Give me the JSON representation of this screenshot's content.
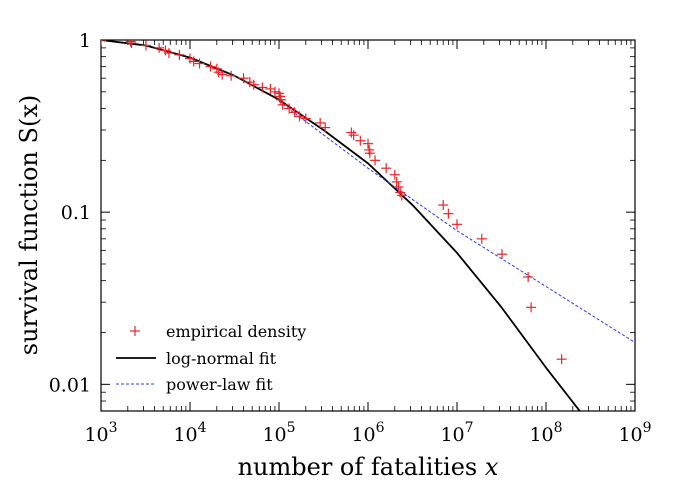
{
  "chart_data": {
    "type": "scatter",
    "xlabel": "number of fatalities",
    "xlabel_var": "x",
    "ylabel": "survival function",
    "ylabel_func": "S(x)",
    "x_scale": "log",
    "y_scale": "log",
    "xlim": [
      1000,
      1000000000
    ],
    "ylim": [
      0.007,
      1
    ],
    "x_ticks": [
      {
        "base": "10",
        "exp": "3"
      },
      {
        "base": "10",
        "exp": "4"
      },
      {
        "base": "10",
        "exp": "5"
      },
      {
        "base": "10",
        "exp": "6"
      },
      {
        "base": "10",
        "exp": "7"
      },
      {
        "base": "10",
        "exp": "8"
      },
      {
        "base": "10",
        "exp": "9"
      }
    ],
    "y_ticks": [
      {
        "value": 1,
        "label": "1"
      },
      {
        "value": 0.1,
        "label": "0.1"
      },
      {
        "value": 0.01,
        "label": "0.01"
      }
    ],
    "grid": false,
    "legend_position": "bottom-left",
    "series": [
      {
        "name": "empirical density",
        "type": "scatter",
        "marker": "plus",
        "color": "#e8262a",
        "points": [
          [
            1000,
            1.0
          ],
          [
            2150,
            0.98
          ],
          [
            2200,
            0.96
          ],
          [
            3200,
            0.93
          ],
          [
            4500,
            0.9
          ],
          [
            5300,
            0.87
          ],
          [
            5800,
            0.84
          ],
          [
            7600,
            0.82
          ],
          [
            10000,
            0.78
          ],
          [
            11000,
            0.75
          ],
          [
            12800,
            0.73
          ],
          [
            17000,
            0.7
          ],
          [
            20000,
            0.68
          ],
          [
            21000,
            0.65
          ],
          [
            23000,
            0.63
          ],
          [
            29000,
            0.62
          ],
          [
            40000,
            0.6
          ],
          [
            47000,
            0.57
          ],
          [
            52000,
            0.55
          ],
          [
            65000,
            0.53
          ],
          [
            80000,
            0.52
          ],
          [
            90000,
            0.5
          ],
          [
            100000,
            0.49
          ],
          [
            103000,
            0.47
          ],
          [
            105000,
            0.45
          ],
          [
            110000,
            0.42
          ],
          [
            130000,
            0.4
          ],
          [
            150000,
            0.38
          ],
          [
            170000,
            0.36
          ],
          [
            200000,
            0.35
          ],
          [
            290000,
            0.33
          ],
          [
            330000,
            0.31
          ],
          [
            650000,
            0.29
          ],
          [
            690000,
            0.28
          ],
          [
            820000,
            0.26
          ],
          [
            1000000,
            0.25
          ],
          [
            1030000,
            0.23
          ],
          [
            1050000,
            0.22
          ],
          [
            1200000,
            0.2
          ],
          [
            1600000,
            0.18
          ],
          [
            2000000,
            0.165
          ],
          [
            2100000,
            0.15
          ],
          [
            2200000,
            0.14
          ],
          [
            2300000,
            0.13
          ],
          [
            2400000,
            0.125
          ],
          [
            7000000,
            0.11
          ],
          [
            8000000,
            0.098
          ],
          [
            10000000,
            0.085
          ],
          [
            19000000,
            0.07
          ],
          [
            32000000,
            0.057
          ],
          [
            63000000,
            0.042
          ],
          [
            68000000,
            0.028
          ],
          [
            150000000,
            0.014
          ]
        ]
      },
      {
        "name": "log-normal fit",
        "type": "line",
        "style": "solid",
        "color": "#000000",
        "points": [
          [
            1000,
            1.0
          ],
          [
            3162,
            0.93
          ],
          [
            10000,
            0.79
          ],
          [
            31623,
            0.62
          ],
          [
            100000,
            0.45
          ],
          [
            316228,
            0.3
          ],
          [
            1000000,
            0.192
          ],
          [
            3162278,
            0.11
          ],
          [
            10000000,
            0.058
          ],
          [
            31622777,
            0.028
          ],
          [
            100000000,
            0.0125
          ],
          [
            250000000,
            0.0068
          ]
        ]
      },
      {
        "name": "power-law fit",
        "type": "line",
        "style": "dashed",
        "color": "#2b3cf0",
        "points": [
          [
            100000,
            0.44
          ],
          [
            1000000,
            0.18
          ],
          [
            10000000,
            0.078
          ],
          [
            100000000,
            0.037
          ],
          [
            1000000000,
            0.0175
          ]
        ]
      }
    ]
  }
}
